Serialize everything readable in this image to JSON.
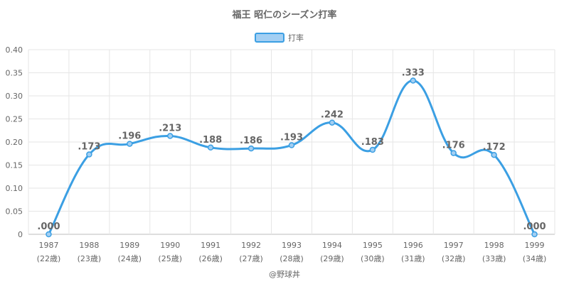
{
  "chart_data": {
    "type": "line",
    "title": "福王 昭仁のシーズン打率",
    "legend": {
      "label": "打率",
      "position": "top"
    },
    "x": [
      "1987",
      "1988",
      "1989",
      "1990",
      "1991",
      "1992",
      "1993",
      "1994",
      "1995",
      "1996",
      "1997",
      "1998",
      "1999"
    ],
    "x_sub": [
      "(22歳)",
      "(23歳)",
      "(24歳)",
      "(25歳)",
      "(26歳)",
      "(27歳)",
      "(28歳)",
      "(29歳)",
      "(30歳)",
      "(31歳)",
      "(32歳)",
      "(33歳)",
      "(34歳)"
    ],
    "series": [
      {
        "name": "打率",
        "values": [
          0.0,
          0.173,
          0.196,
          0.213,
          0.188,
          0.186,
          0.193,
          0.242,
          0.183,
          0.333,
          0.176,
          0.172,
          0.0
        ],
        "labels": [
          ".000",
          ".173",
          ".196",
          ".213",
          ".188",
          ".186",
          ".193",
          ".242",
          ".183",
          ".333",
          ".176",
          ".172",
          ".000"
        ]
      }
    ],
    "yticks": [
      "0",
      "0.05",
      "0.10",
      "0.15",
      "0.20",
      "0.25",
      "0.30",
      "0.35",
      "0.40"
    ],
    "ylim": [
      0,
      0.4
    ],
    "grid": true,
    "colors": {
      "line": "#3b9fe3",
      "fill": "#a3cff3"
    }
  },
  "credit": "@野球丼"
}
